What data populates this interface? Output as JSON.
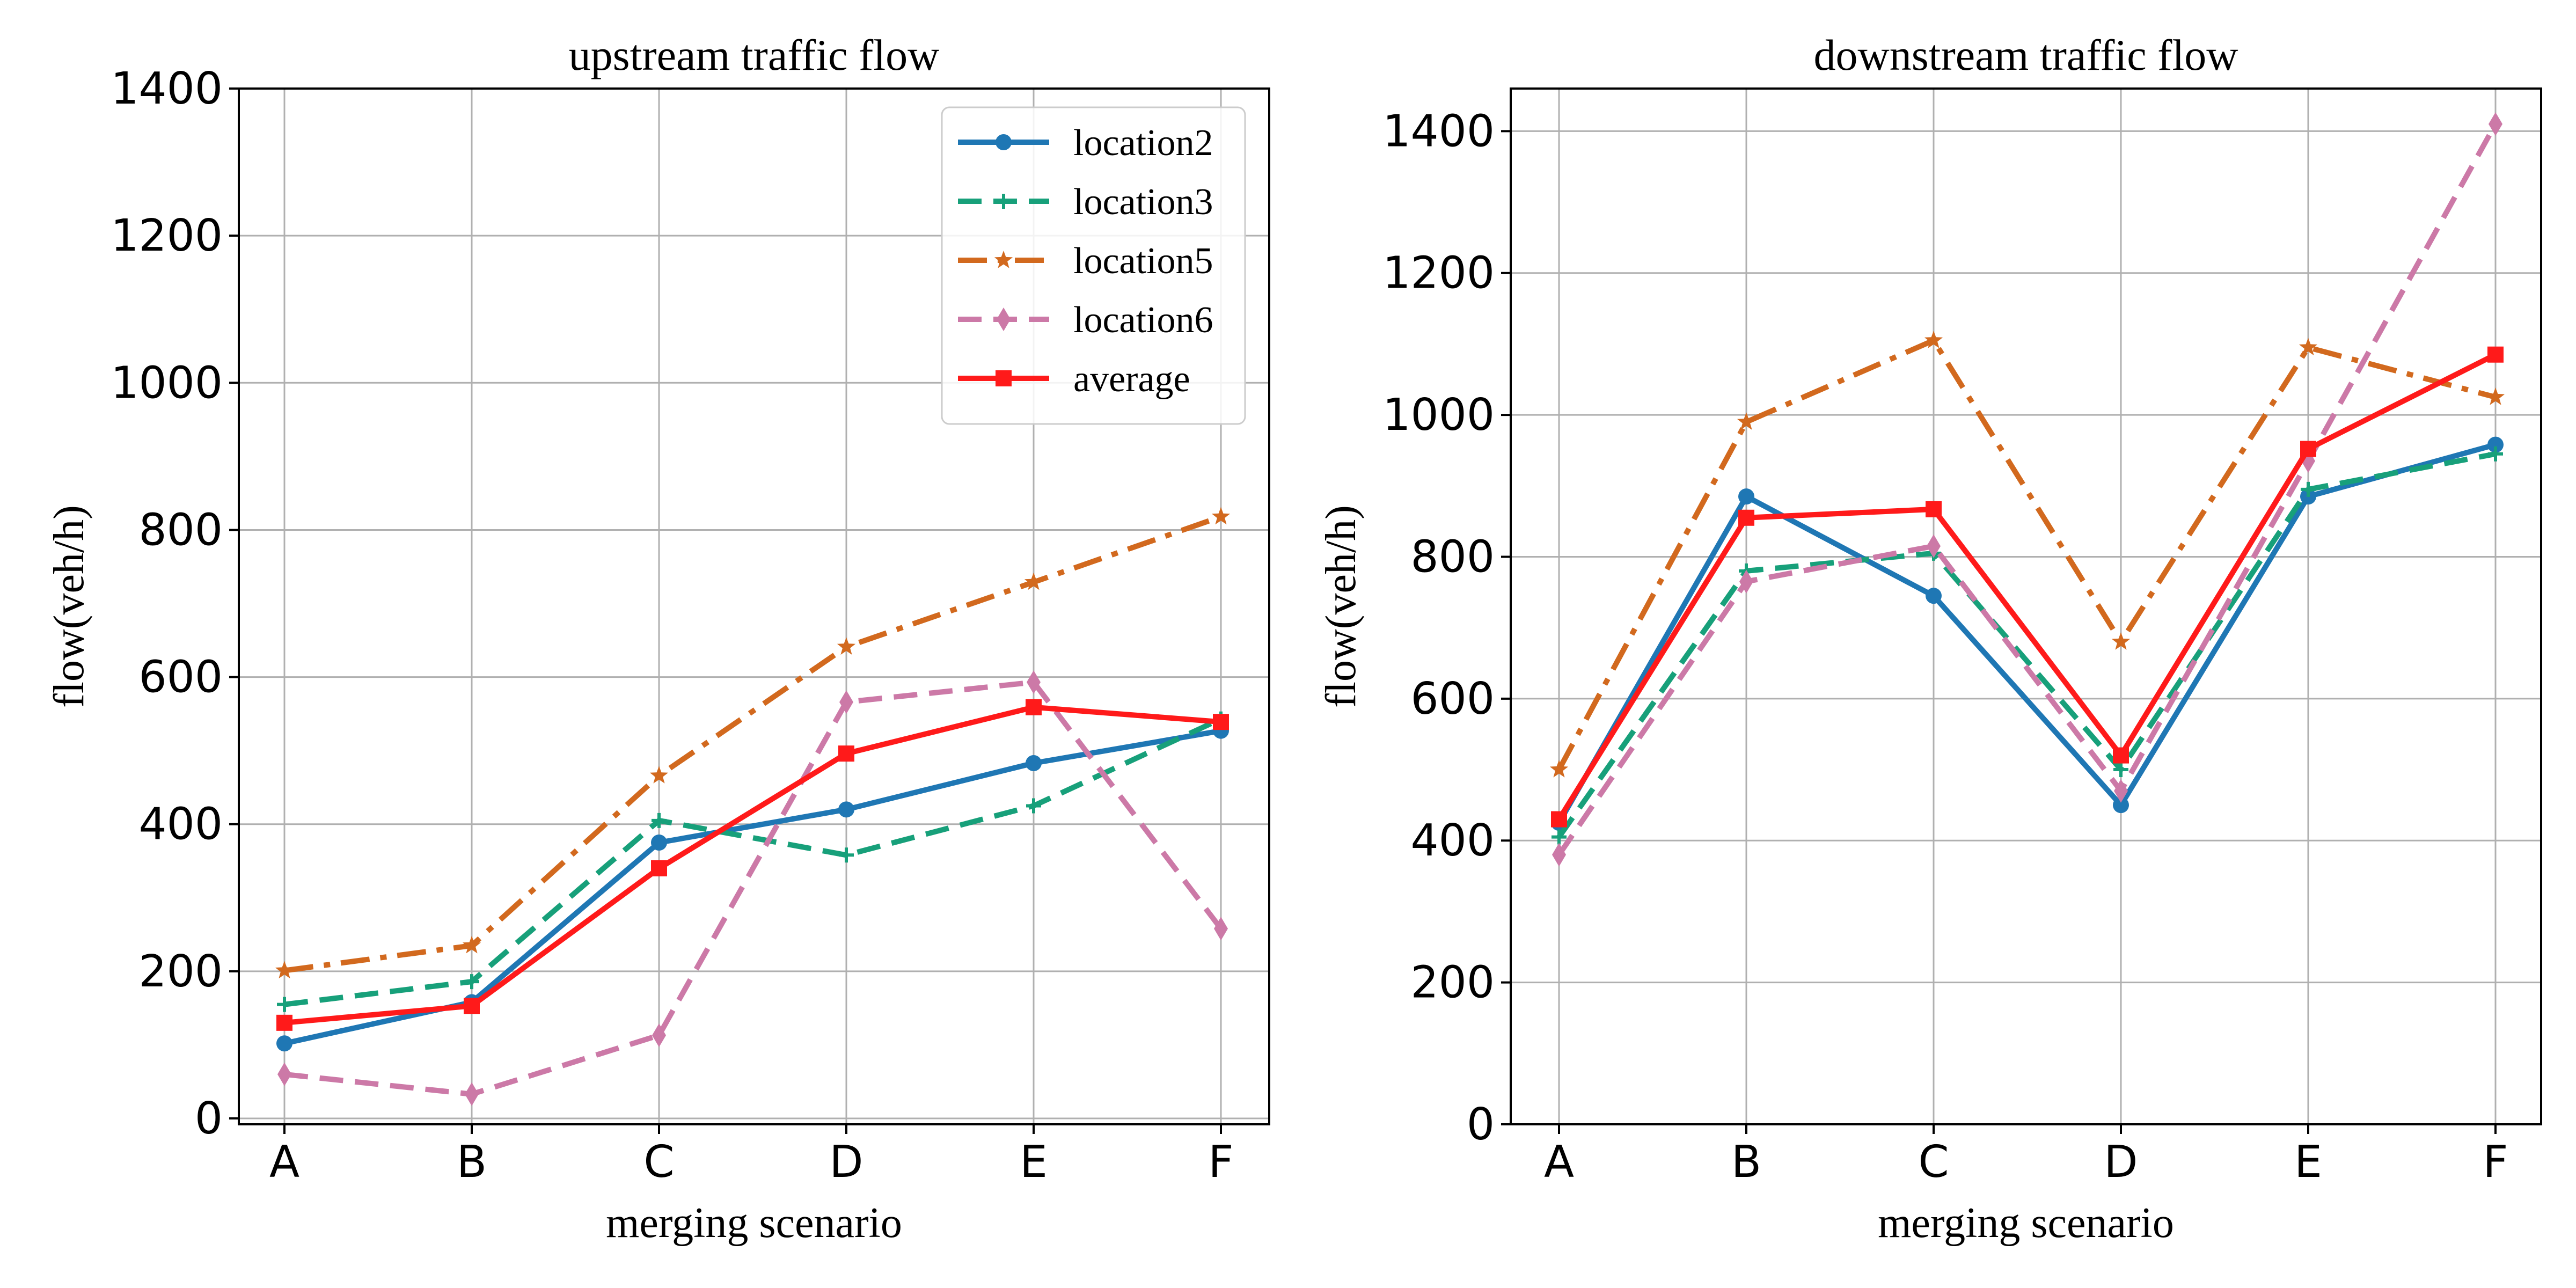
{
  "chart_data": [
    {
      "type": "line",
      "title": "upstream traffic flow",
      "xlabel": "merging scenario",
      "ylabel": "flow(veh/h)",
      "categories": [
        "A",
        "B",
        "C",
        "D",
        "E",
        "F"
      ],
      "ylim": [
        -8,
        1400
      ],
      "yticks": [
        0,
        200,
        400,
        600,
        800,
        1000,
        1200,
        1400
      ],
      "grid": true,
      "legend": "top-right",
      "series": [
        {
          "name": "location2",
          "values": [
            102,
            158,
            375,
            420,
            483,
            527
          ],
          "color": "#1f77b4",
          "dash": "solid",
          "marker": "circle"
        },
        {
          "name": "location3",
          "values": [
            155,
            186,
            405,
            358,
            425,
            543
          ],
          "color": "#17a07a",
          "dash": "dashed",
          "marker": "plus"
        },
        {
          "name": "location5",
          "values": [
            201,
            235,
            466,
            641,
            729,
            818
          ],
          "color": "#d2691e",
          "dash": "dashdot",
          "marker": "star"
        },
        {
          "name": "location6",
          "values": [
            60,
            33,
            113,
            566,
            593,
            258
          ],
          "color": "#cc79a7",
          "dash": "dashed",
          "marker": "diamond"
        },
        {
          "name": "average",
          "values": [
            130,
            153,
            340,
            496,
            559,
            539
          ],
          "color": "#ff1a1a",
          "dash": "solid",
          "marker": "square"
        }
      ]
    },
    {
      "type": "line",
      "title": "downstream traffic flow",
      "xlabel": "merging scenario",
      "ylabel": "flow(veh/h)",
      "categories": [
        "A",
        "B",
        "C",
        "D",
        "E",
        "F"
      ],
      "ylim": [
        0,
        1460
      ],
      "yticks": [
        0,
        200,
        400,
        600,
        800,
        1000,
        1200,
        1400
      ],
      "grid": true,
      "legend": "none",
      "series": [
        {
          "name": "location2",
          "values": [
            425,
            885,
            745,
            450,
            885,
            958
          ],
          "color": "#1f77b4",
          "dash": "solid",
          "marker": "circle"
        },
        {
          "name": "location3",
          "values": [
            405,
            780,
            805,
            500,
            895,
            945
          ],
          "color": "#17a07a",
          "dash": "dashed",
          "marker": "plus"
        },
        {
          "name": "location5",
          "values": [
            500,
            990,
            1105,
            680,
            1095,
            1025
          ],
          "color": "#d2691e",
          "dash": "dashdot",
          "marker": "star"
        },
        {
          "name": "location6",
          "values": [
            380,
            765,
            815,
            470,
            935,
            1410
          ],
          "color": "#cc79a7",
          "dash": "dashed",
          "marker": "diamond"
        },
        {
          "name": "average",
          "values": [
            430,
            855,
            867,
            520,
            952,
            1085
          ],
          "color": "#ff1a1a",
          "dash": "solid",
          "marker": "square"
        }
      ]
    }
  ]
}
